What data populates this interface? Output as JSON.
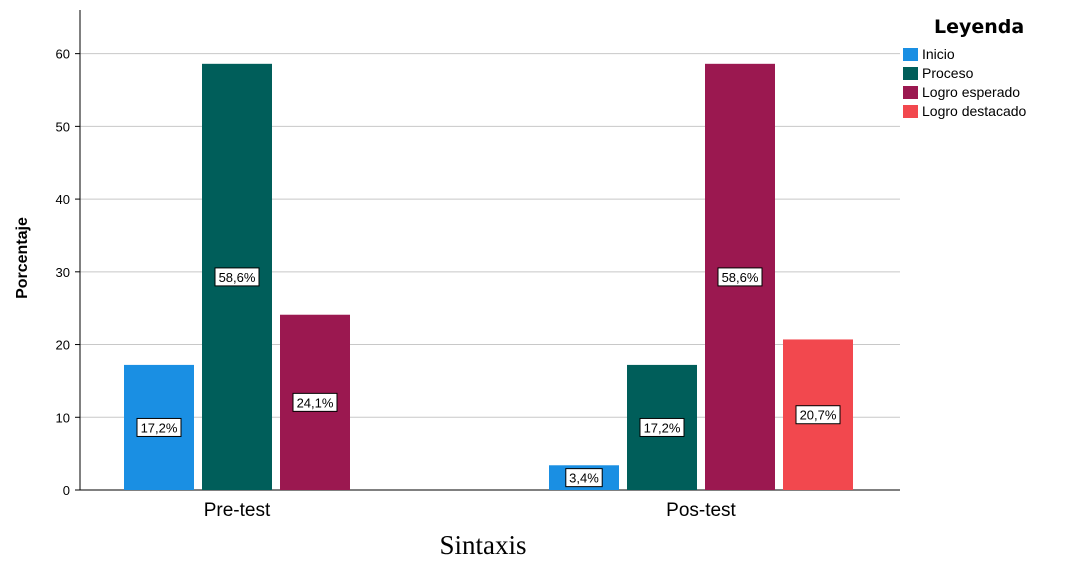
{
  "chart_data": {
    "type": "bar",
    "title": "Sintaxis",
    "ylabel": "Porcentaje",
    "xlabel": "",
    "ylim": [
      0,
      66
    ],
    "yticks": [
      0,
      10,
      20,
      30,
      40,
      50,
      60
    ],
    "grid": true,
    "legend_title": "Leyenda",
    "legend_position": "top-right",
    "categories": [
      "Pre-test",
      "Pos-test"
    ],
    "series": [
      {
        "name": "Inicio",
        "color": "#1a8fe3",
        "values": [
          17.2,
          3.4
        ],
        "labels": [
          "17,2%",
          "3,4%"
        ]
      },
      {
        "name": "Proceso",
        "color": "#005e5a",
        "values": [
          58.6,
          17.2
        ],
        "labels": [
          "58,6%",
          "17,2%"
        ]
      },
      {
        "name": "Logro esperado",
        "color": "#9b1850",
        "values": [
          24.1,
          58.6
        ],
        "labels": [
          "24,1%",
          "58,6%"
        ]
      },
      {
        "name": "Logro destacado",
        "color": "#f2484e",
        "values": [
          null,
          20.7
        ],
        "labels": [
          null,
          "20,7%"
        ]
      }
    ]
  }
}
